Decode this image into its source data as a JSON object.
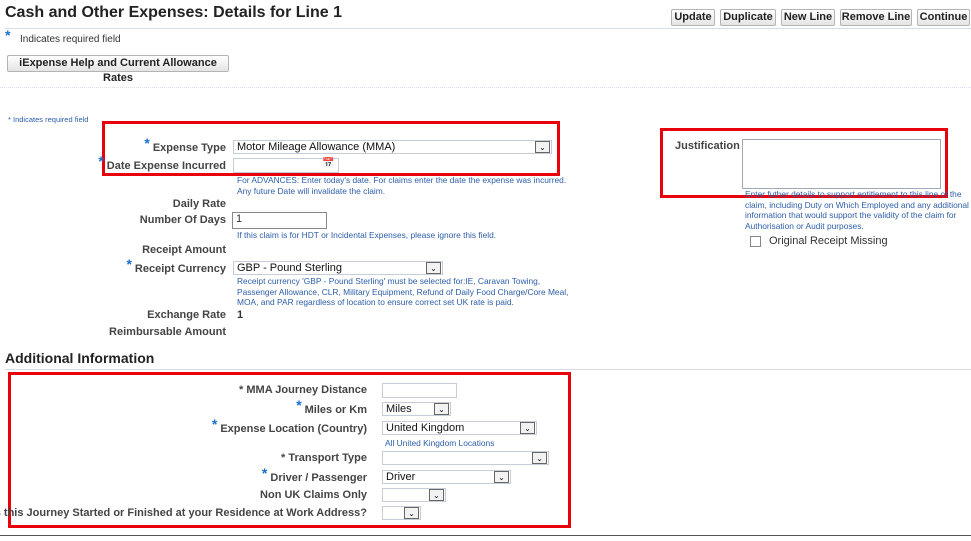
{
  "header": {
    "title": "Cash and Other Expenses: Details for Line 1",
    "buttons": [
      "Update",
      "Duplicate",
      "New Line",
      "Remove Line",
      "Continue"
    ]
  },
  "required_note": {
    "star": "*",
    "text": "Indicates required field"
  },
  "help_button": "iExpense Help and Current Allowance Rates",
  "form_required_note": "* Indicates required field",
  "form": {
    "expense_type": {
      "label": "Expense Type",
      "value": "Motor Mileage Allowance (MMA)"
    },
    "date_incurred": {
      "label": "Date Expense Incurred",
      "value": "",
      "help": [
        "For ADVANCES: Enter today's date. For claims enter the date the expense was incurred.",
        "Any future Date will invalidate the claim."
      ]
    },
    "daily_rate": {
      "label": "Daily Rate"
    },
    "number_of_days": {
      "label": "Number Of Days",
      "value": "1",
      "help": "If this claim is for HDT or Incidental Expenses, please ignore this field."
    },
    "receipt_amount": {
      "label": "Receipt Amount"
    },
    "receipt_currency": {
      "label": "Receipt Currency",
      "value": "GBP - Pound Sterling",
      "help": [
        "Receipt currency 'GBP - Pound Sterling' must be selected for:IE, Caravan Towing,",
        "Passenger Allowance, CLR, Military Equipment, Refund of Daily Food Charge/Core Meal,",
        "MOA, and PAR regardless of location to ensure correct set UK rate is paid."
      ]
    },
    "exchange_rate": {
      "label": "Exchange Rate",
      "value": "1"
    },
    "reimbursable_amount": {
      "label": "Reimbursable Amount"
    },
    "justification": {
      "label": "Justification",
      "value": "",
      "help": [
        "Enter futher details to support entitlement to this line of the",
        "claim, including Duty on Which Employed and any additional",
        "information that would support the validity of the claim for",
        "Authorisation or Audit purposes."
      ]
    },
    "original_receipt_missing": {
      "label": "Original Receipt Missing",
      "checked": false
    }
  },
  "additional": {
    "title": "Additional Information",
    "journey_distance": {
      "label": "* MMA Journey Distance",
      "value": ""
    },
    "miles_or_km": {
      "label": "Miles or Km",
      "value": "Miles"
    },
    "expense_location": {
      "label": "Expense Location (Country)",
      "value": "United Kingdom",
      "link": "All United Kingdom Locations"
    },
    "transport_type": {
      "label": "* Transport Type",
      "value": ""
    },
    "driver_passenger": {
      "label": "Driver / Passenger",
      "value": "Driver"
    },
    "non_uk": {
      "label": "Non UK Claims Only",
      "value": ""
    },
    "residence": {
      "label": "Has this Journey Started or Finished at your Residence at Work Address?",
      "value": ""
    }
  },
  "colors": {
    "highlight": "#e8000b",
    "required_star": "#1a6fd0",
    "help_text": "#2d5ea8"
  }
}
